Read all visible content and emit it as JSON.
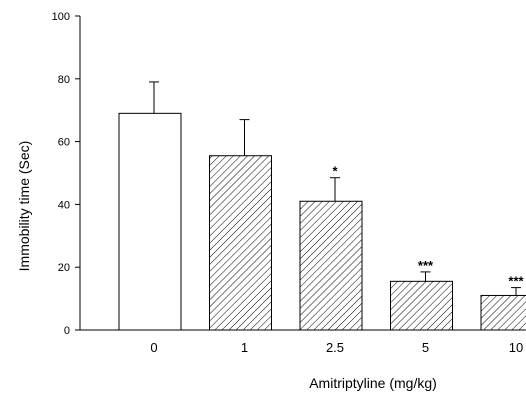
{
  "chart_data": {
    "type": "bar",
    "title": "",
    "xlabel": "Amitriptyline (mg/kg)",
    "ylabel": "Immobility time (Sec)",
    "ylim": [
      0,
      100
    ],
    "yticks": [
      "0",
      "20",
      "40",
      "60",
      "80",
      "100"
    ],
    "categories": [
      "0",
      "1",
      "2.5",
      "5",
      "10"
    ],
    "values": [
      69,
      55.5,
      41,
      15.5,
      11
    ],
    "errors": [
      10,
      11.5,
      7.5,
      3,
      2.5
    ],
    "significance": [
      "",
      "",
      "*",
      "***",
      "***"
    ],
    "fills": [
      "plain",
      "hatched",
      "hatched",
      "hatched",
      "hatched"
    ],
    "grid": false,
    "colors": {
      "bar_stroke": "#000000",
      "hatch": "#000000",
      "plain_fill": "#ffffff"
    }
  }
}
